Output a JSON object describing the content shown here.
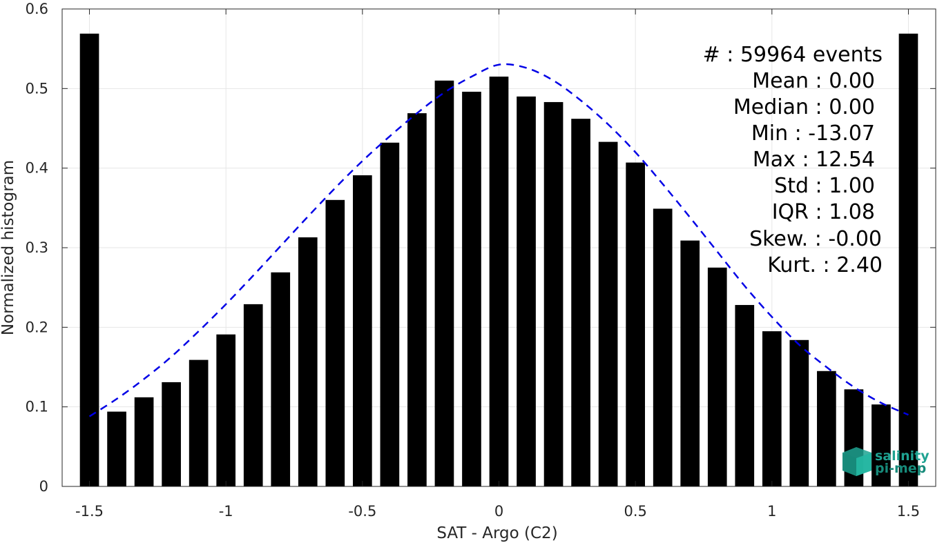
{
  "chart_data": {
    "type": "bar",
    "xlabel": "SAT - Argo (C2)",
    "ylabel": "Normalized histogram",
    "xlim": [
      -1.6,
      1.6
    ],
    "ylim": [
      0,
      0.6
    ],
    "grid": true,
    "x_ticks": [
      -1.5,
      -1,
      -0.5,
      0,
      0.5,
      1,
      1.5
    ],
    "x_tick_labels": [
      "-1.5",
      "-1",
      "-0.5",
      "0",
      "0.5",
      "1",
      "1.5"
    ],
    "y_ticks": [
      0,
      0.1,
      0.2,
      0.3,
      0.4,
      0.5,
      0.6
    ],
    "y_tick_labels": [
      "0",
      "0.1",
      "0.2",
      "0.3",
      "0.4",
      "0.5",
      "0.6"
    ],
    "bar_color": "#000000",
    "bin_width": 0.1,
    "x": [
      -1.5,
      -1.4,
      -1.3,
      -1.2,
      -1.1,
      -1.0,
      -0.9,
      -0.8,
      -0.7,
      -0.6,
      -0.5,
      -0.4,
      -0.3,
      -0.2,
      -0.1,
      0.0,
      0.1,
      0.2,
      0.3,
      0.4,
      0.5,
      0.6,
      0.7,
      0.8,
      0.9,
      1.0,
      1.1,
      1.2,
      1.3,
      1.4,
      1.5
    ],
    "values": [
      0.569,
      0.094,
      0.112,
      0.131,
      0.159,
      0.191,
      0.229,
      0.269,
      0.313,
      0.36,
      0.391,
      0.432,
      0.469,
      0.51,
      0.496,
      0.515,
      0.49,
      0.483,
      0.462,
      0.433,
      0.407,
      0.349,
      0.309,
      0.275,
      0.228,
      0.195,
      0.184,
      0.145,
      0.122,
      0.103,
      0.569
    ],
    "fit_curve": {
      "style": "dashed",
      "color": "#0000e6",
      "x": [
        -1.5,
        -1.4,
        -1.3,
        -1.2,
        -1.1,
        -1.0,
        -0.9,
        -0.8,
        -0.7,
        -0.6,
        -0.5,
        -0.4,
        -0.3,
        -0.2,
        -0.1,
        0.0,
        0.1,
        0.2,
        0.3,
        0.4,
        0.5,
        0.6,
        0.7,
        0.8,
        0.9,
        1.0,
        1.1,
        1.2,
        1.3,
        1.4,
        1.5
      ],
      "y": [
        0.088,
        0.11,
        0.135,
        0.163,
        0.195,
        0.229,
        0.265,
        0.302,
        0.339,
        0.375,
        0.409,
        0.44,
        0.469,
        0.495,
        0.515,
        0.53,
        0.526,
        0.51,
        0.485,
        0.455,
        0.42,
        0.38,
        0.338,
        0.295,
        0.252,
        0.213,
        0.178,
        0.15,
        0.125,
        0.105,
        0.09
      ]
    }
  },
  "stats": [
    {
      "label": "#  : 59964 events"
    },
    {
      "label": "Mean : 0.00"
    },
    {
      "label": "Median : 0.00"
    },
    {
      "label": "Min : -13.07"
    },
    {
      "label": "Max : 12.54"
    },
    {
      "label": "Std : 1.00"
    },
    {
      "label": "IQR : 1.08"
    },
    {
      "label": "Skew. : -0.00"
    },
    {
      "label": "Kurt. : 2.40"
    }
  ],
  "logo": {
    "line1": "salinity",
    "line2": "pi-mep",
    "color": "#1fa392"
  }
}
